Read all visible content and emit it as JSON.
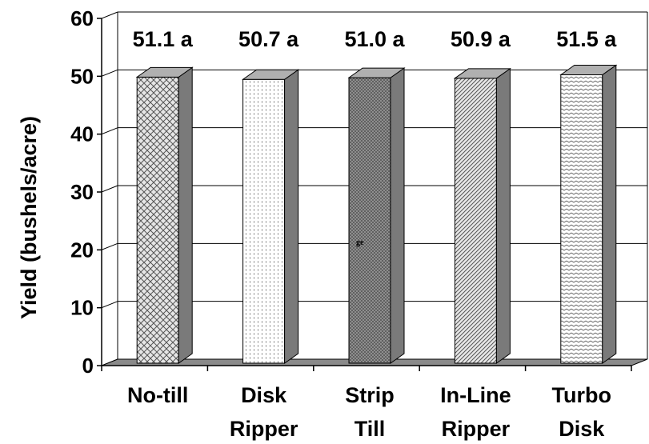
{
  "chart_data": {
    "type": "bar",
    "ylabel": "Yield (bushels/acre)",
    "ylim": [
      0,
      60
    ],
    "yticks": [
      "0",
      "10",
      "20",
      "30",
      "40",
      "50",
      "60"
    ],
    "grid": true,
    "categories": [
      [
        "No-till"
      ],
      [
        "Disk",
        "Ripper"
      ],
      [
        "Strip",
        "Till"
      ],
      [
        "In-Line",
        "Ripper"
      ],
      [
        "Turbo",
        "Disk"
      ]
    ],
    "values": [
      51.1,
      50.7,
      51.0,
      50.9,
      51.5
    ],
    "data_labels": [
      "51.1 a",
      "50.7 a",
      "51.0 a",
      "50.9 a",
      "51.5 a"
    ],
    "annotation": "ge",
    "colors": {
      "axis": "#000000",
      "floor": "#8a8a8a",
      "side": "#7a7a7a",
      "top": "#b0b0b0"
    }
  }
}
